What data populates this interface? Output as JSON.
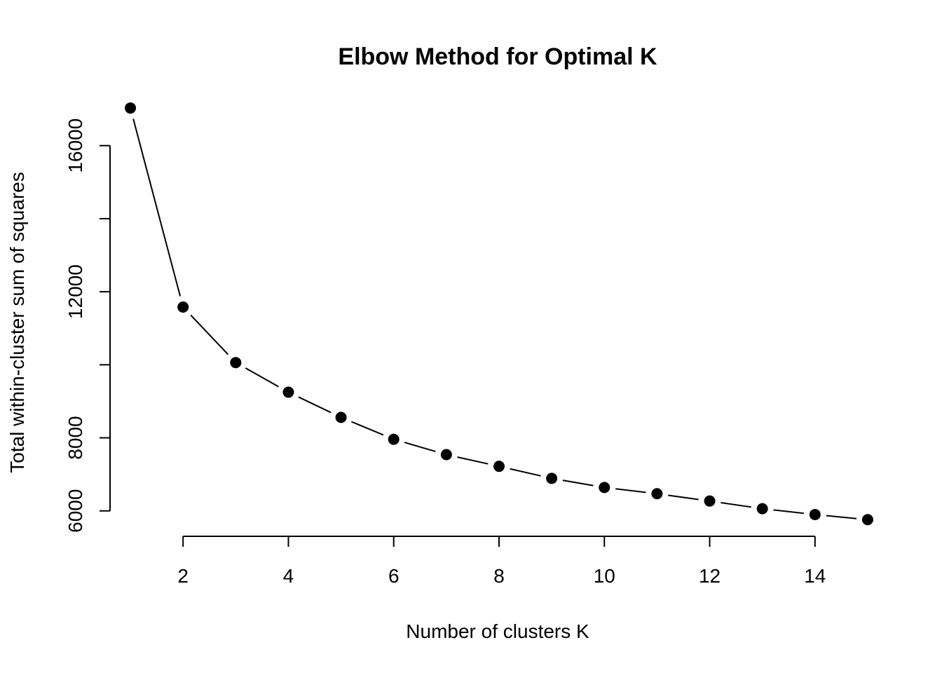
{
  "chart_data": {
    "type": "line",
    "title": "Elbow Method for Optimal K",
    "xlabel": "Number of clusters K",
    "ylabel": "Total within-cluster sum of squares",
    "x": [
      1,
      2,
      3,
      4,
      5,
      6,
      7,
      8,
      9,
      10,
      11,
      12,
      13,
      14,
      15
    ],
    "series": [
      {
        "values": [
          17030,
          11580,
          10060,
          9250,
          8560,
          7960,
          7540,
          7220,
          6890,
          6640,
          6470,
          6270,
          6060,
          5900,
          5760
        ]
      }
    ],
    "xticks": [
      2,
      4,
      6,
      8,
      10,
      12,
      14
    ],
    "yticks": [
      6000,
      8000,
      12000,
      16000
    ],
    "ytick_marks": [
      6000,
      8000,
      10000,
      12000,
      14000,
      16000
    ],
    "xlim": [
      0.6,
      15.4
    ],
    "ylim": [
      5400,
      17300
    ],
    "grid": false,
    "legend": "none",
    "line_color": "#000000",
    "marker_color": "#000000"
  }
}
